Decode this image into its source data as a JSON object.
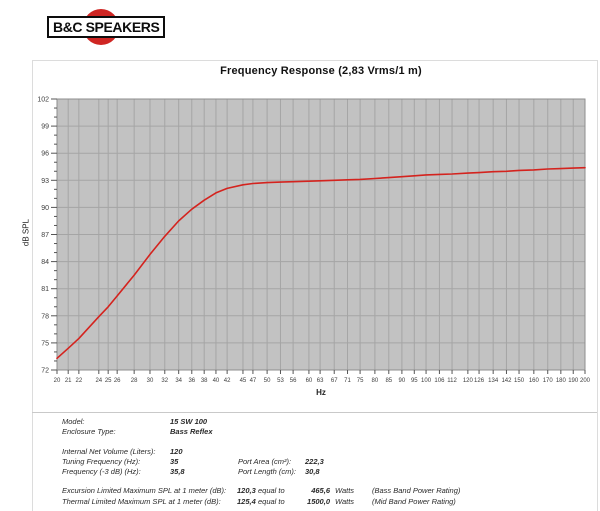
{
  "logo": {
    "text": "B&C SPEAKERS",
    "circle_color": "#cf2623"
  },
  "chart_data": {
    "type": "line",
    "title": "Frequency Response (2,83 Vrms/1 m)",
    "xlabel": "Hz",
    "ylabel": "dB SPL",
    "x_scale": "log",
    "xlim": [
      20,
      200
    ],
    "ylim": [
      72,
      102
    ],
    "ytick_step": 3,
    "ytick_minor_step": 1,
    "grid": true,
    "legend": "none",
    "plot_bg": "#c2c2c2",
    "grid_color": "#a5a5a5",
    "axis_color": "#8e8e8e",
    "tick_color": "#555555",
    "x_ticks": [
      20,
      21,
      22,
      24,
      25,
      26,
      28,
      30,
      32,
      34,
      36,
      38,
      40,
      42,
      45,
      47,
      50,
      53,
      56,
      60,
      63,
      67,
      71,
      75,
      80,
      85,
      90,
      95,
      100,
      106,
      112,
      120,
      126,
      134,
      142,
      150,
      160,
      170,
      180,
      190,
      200
    ],
    "series": [
      {
        "name": "SPL",
        "color": "#d4231e",
        "x": [
          20,
          21,
          22,
          24,
          25,
          26,
          28,
          30,
          32,
          34,
          36,
          38,
          40,
          42,
          45,
          47,
          50,
          53,
          56,
          60,
          63,
          67,
          71,
          75,
          80,
          85,
          90,
          95,
          100,
          106,
          112,
          120,
          126,
          134,
          142,
          150,
          160,
          170,
          180,
          190,
          200
        ],
        "values": [
          73.3,
          74.4,
          75.5,
          77.9,
          79.0,
          80.2,
          82.5,
          84.8,
          86.8,
          88.5,
          89.8,
          90.8,
          91.6,
          92.1,
          92.5,
          92.65,
          92.75,
          92.8,
          92.85,
          92.9,
          92.95,
          93.0,
          93.05,
          93.1,
          93.2,
          93.3,
          93.4,
          93.5,
          93.6,
          93.65,
          93.7,
          93.8,
          93.85,
          93.95,
          94.0,
          94.1,
          94.15,
          94.25,
          94.3,
          94.35,
          94.4
        ]
      }
    ]
  },
  "specs": {
    "model": {
      "label": "Model:",
      "value": "15 SW 100"
    },
    "enclosure": {
      "label": "Enclosure Type:",
      "value": "Bass Reflex"
    },
    "volume": {
      "label": "Internal Net Volume (Liters):",
      "value": "120"
    },
    "tuning": {
      "label": "Tuning Frequency (Hz):",
      "value": "35"
    },
    "f3": {
      "label": "Frequency (-3 dB) (Hz):",
      "value": "35,8"
    },
    "port_area": {
      "label": "Port Area (cm²):",
      "value": "222,3"
    },
    "port_length": {
      "label": "Port Length (cm):",
      "value": "30,8"
    },
    "excursion": {
      "label": "Excursion Limited Maximum SPL at 1 meter (dB):",
      "value": "120,3",
      "equal": "equal to",
      "watts": "465,6",
      "watts_unit": "Watts",
      "note": "(Bass Band Power Rating)"
    },
    "thermal": {
      "label": "Thermal Limited Maximum SPL at 1 meter (dB):",
      "value": "125,4",
      "equal": "equal to",
      "watts": "1500,0",
      "watts_unit": "Watts",
      "note": "(Mid Band Power Rating)"
    }
  }
}
